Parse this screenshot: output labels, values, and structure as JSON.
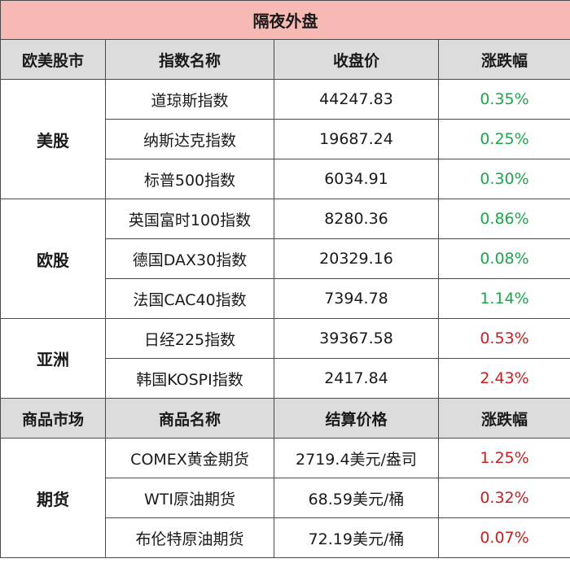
{
  "title": "隔夜外盘",
  "header1": {
    "market": "欧美股市",
    "name": "指数名称",
    "price": "收盘价",
    "change": "涨跌幅"
  },
  "groups": [
    {
      "label": "美股",
      "rows": [
        {
          "name": "道琼斯指数",
          "price": "44247.83",
          "change": "0.35%"
        },
        {
          "name": "纳斯达克指数",
          "price": "19687.24",
          "change": "0.25%"
        },
        {
          "name": "标普500指数",
          "price": "6034.91",
          "change": "0.30%"
        }
      ]
    },
    {
      "label": "欧股",
      "rows": [
        {
          "name": "英国富时100指数",
          "price": "8280.36",
          "change": "0.86%"
        },
        {
          "name": "德国DAX30指数",
          "price": "20329.16",
          "change": "0.08%"
        },
        {
          "name": "法国CAC40指数",
          "price": "7394.78",
          "change": "1.14%"
        }
      ]
    },
    {
      "label": "亚洲",
      "rows": [
        {
          "name": "日经225指数",
          "price": "39367.58",
          "change": "0.53%"
        },
        {
          "name": "韩国KOSPI指数",
          "price": "2417.84",
          "change": "2.43%"
        }
      ]
    }
  ],
  "header2": {
    "market": "商品市场",
    "name": "商品名称",
    "price": "结算价格",
    "change": "涨跌幅"
  },
  "commodities": {
    "label": "期货",
    "rows": [
      {
        "name": "COMEX黄金期货",
        "price": "2719.4美元/盎司",
        "change": "1.25%"
      },
      {
        "name": "WTI原油期货",
        "price": "68.59美元/桶",
        "change": "0.32%"
      },
      {
        "name": "布伦特原油期货",
        "price": "72.19美元/桶",
        "change": "0.07%"
      }
    ]
  },
  "colors": {
    "title_bg": "#f7b9b4",
    "header_bg": "#dcdcdc",
    "up": "#1ca64a",
    "down": "#c81e1e"
  }
}
